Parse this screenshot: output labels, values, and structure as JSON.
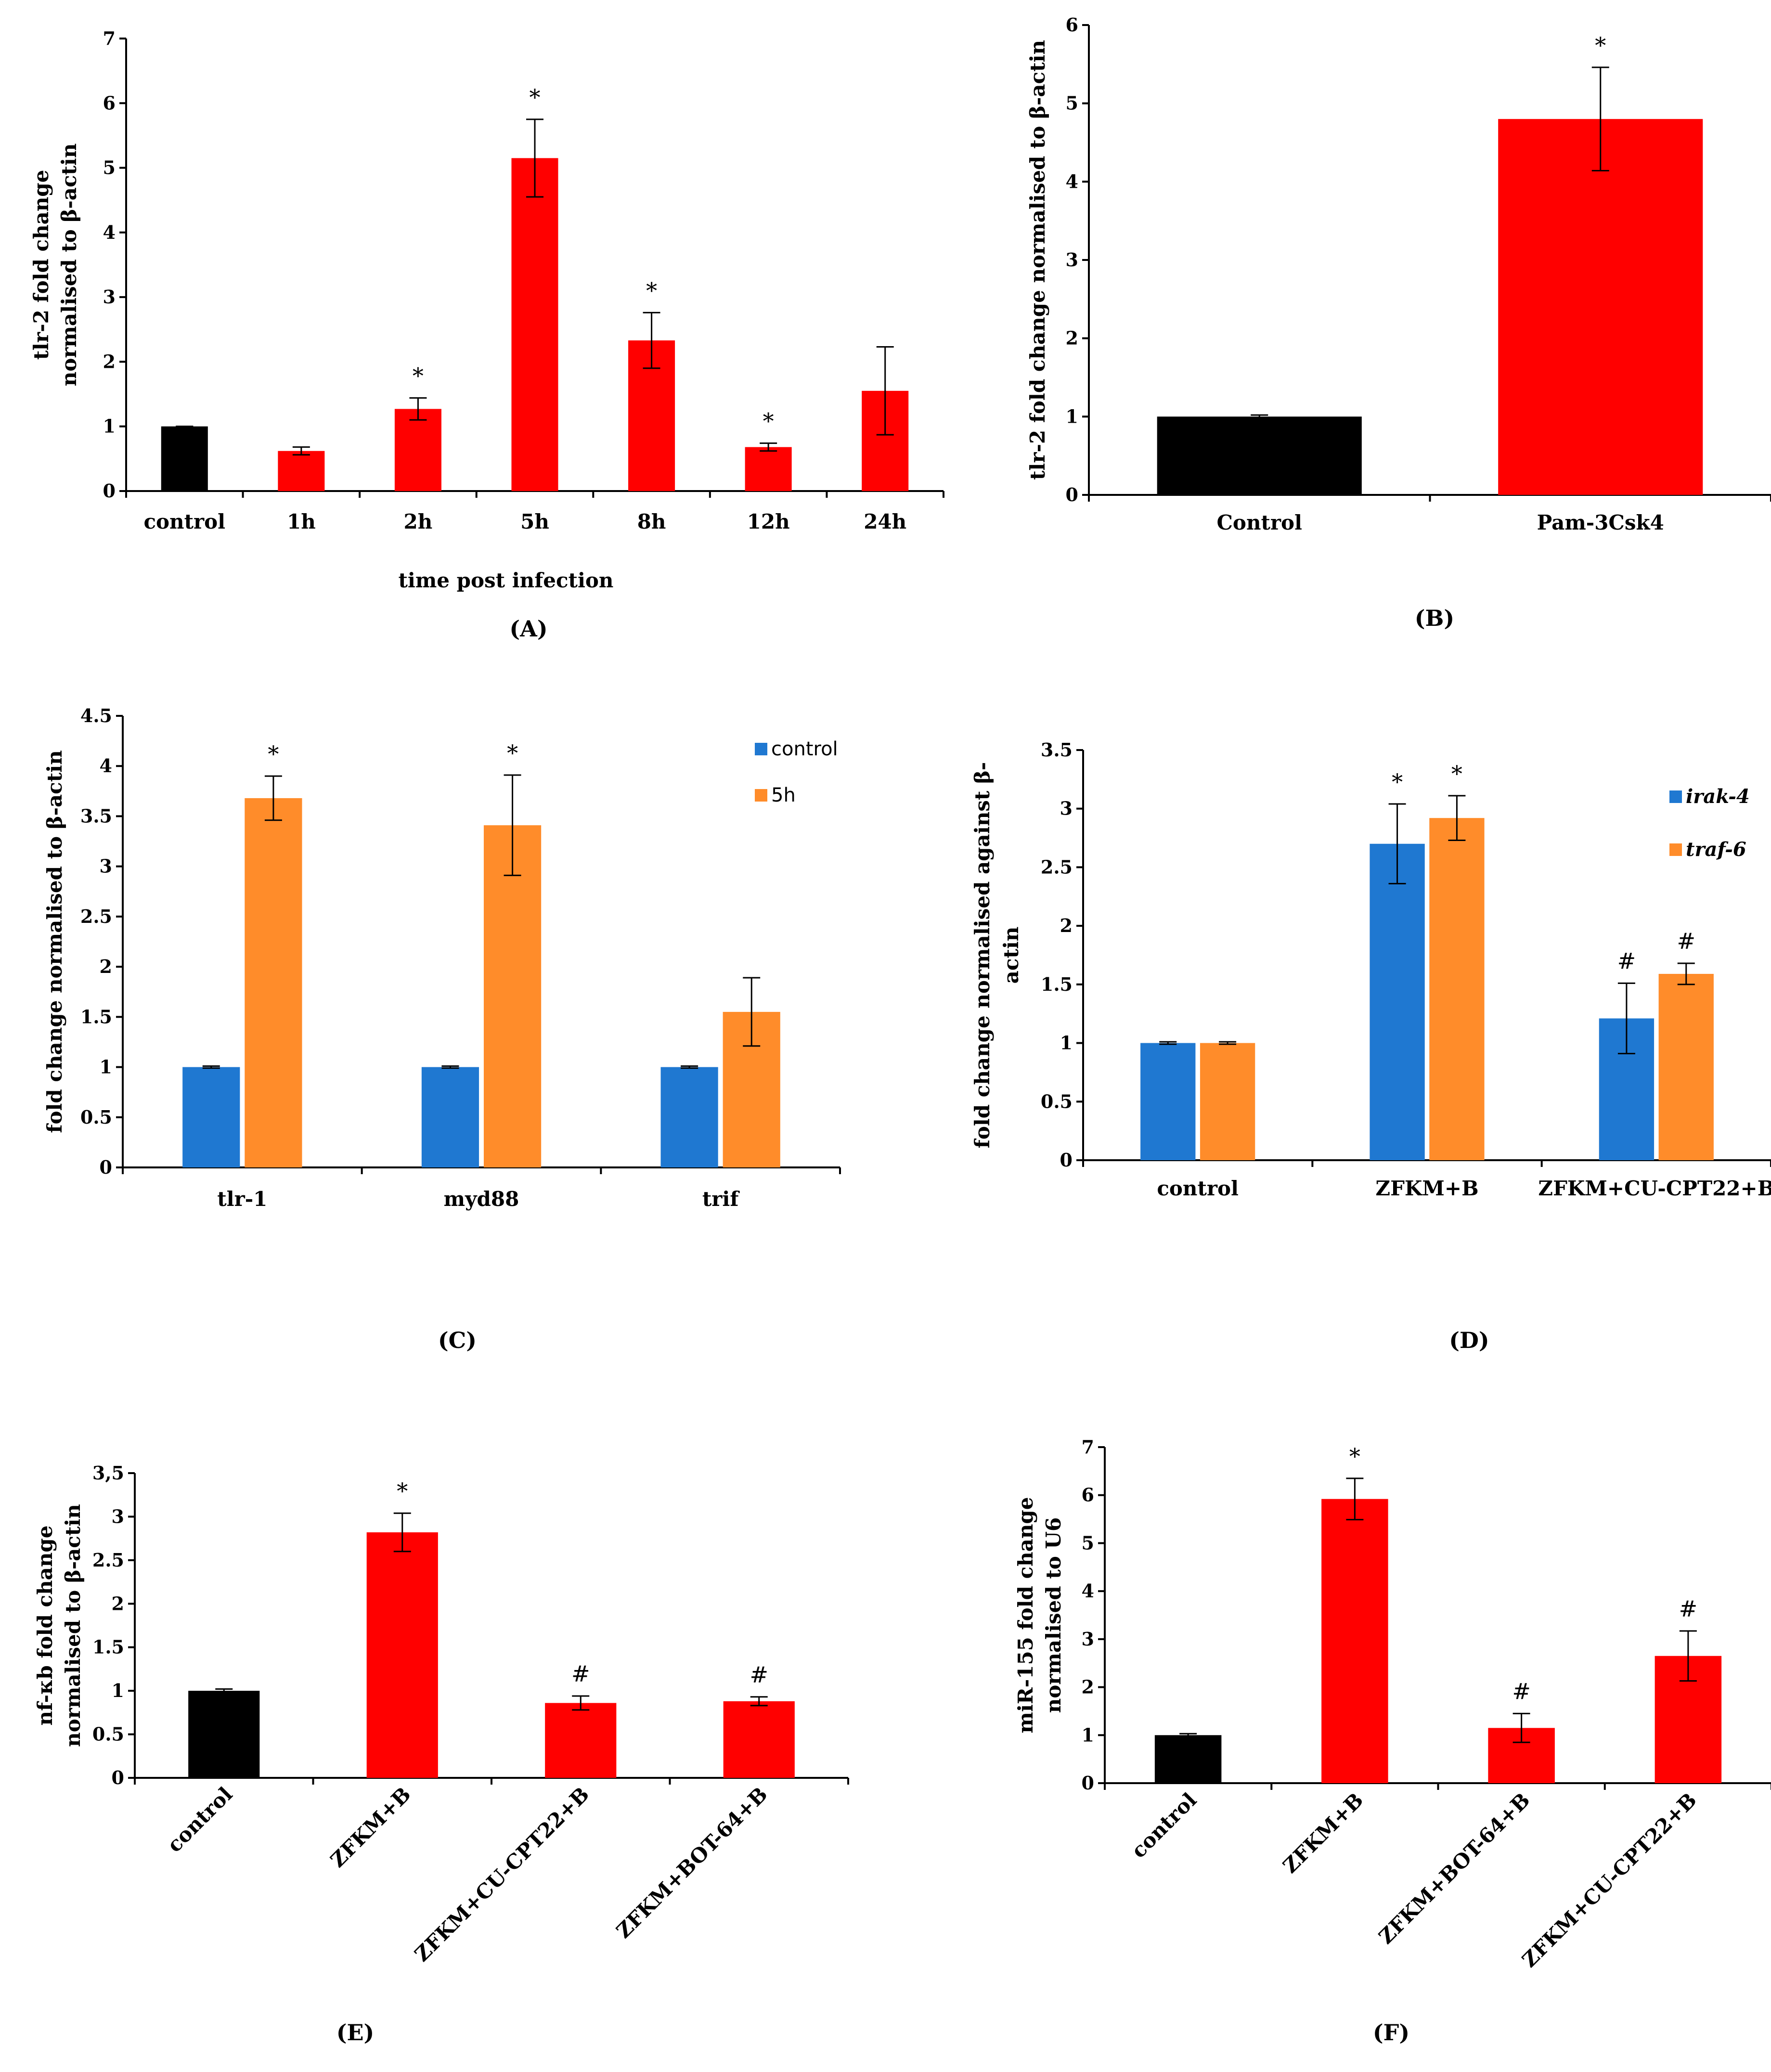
{
  "colors": {
    "black": "#000000",
    "red": "#ff0000",
    "blue": "#1f78d1",
    "orange": "#ff8c2a"
  },
  "chart_data": [
    {
      "id": "A",
      "type": "bar",
      "panel_label": "(A)",
      "ylabel_lines": [
        "tlr-2 fold change",
        "normalised to β-actin"
      ],
      "xlabel": "time post infection",
      "categories": [
        "control",
        "1h",
        "2h",
        "5h",
        "8h",
        "12h",
        "24h"
      ],
      "ylim": [
        0,
        7
      ],
      "yticks": [
        0,
        1,
        2,
        3,
        4,
        5,
        6,
        7
      ],
      "series": [
        {
          "values": [
            1.0,
            0.62,
            1.27,
            5.15,
            2.33,
            0.68,
            1.55
          ],
          "errors": [
            0,
            0.06,
            0.17,
            0.6,
            0.43,
            0.06,
            0.68
          ],
          "colors": [
            "black",
            "red",
            "red",
            "red",
            "red",
            "red",
            "red"
          ]
        }
      ],
      "annotations": [
        {
          "category": 2,
          "series": 0,
          "text": "*"
        },
        {
          "category": 3,
          "series": 0,
          "text": "*"
        },
        {
          "category": 4,
          "series": 0,
          "text": "*"
        },
        {
          "category": 5,
          "series": 0,
          "text": "*"
        }
      ]
    },
    {
      "id": "B",
      "type": "bar",
      "panel_label": "(B)",
      "ylabel_lines": [
        "tlr-2 fold change normalised to β-actin"
      ],
      "xlabel": "",
      "categories": [
        "Control",
        "Pam-3Csk4"
      ],
      "ylim": [
        0,
        6
      ],
      "yticks": [
        0,
        1,
        2,
        3,
        4,
        5,
        6
      ],
      "series": [
        {
          "values": [
            1.0,
            4.8
          ],
          "errors": [
            0.02,
            0.66
          ],
          "colors": [
            "black",
            "red"
          ]
        }
      ],
      "annotations": [
        {
          "category": 1,
          "series": 0,
          "text": "*"
        }
      ]
    },
    {
      "id": "C",
      "type": "bar",
      "panel_label": "(C)",
      "ylabel_lines": [
        "fold change normalised to β-actin"
      ],
      "xlabel": "",
      "categories": [
        "tlr-1",
        "myd88",
        "trif"
      ],
      "ylim": [
        0,
        4.5
      ],
      "yticks": [
        0,
        0.5,
        1,
        1.5,
        2,
        2.5,
        3,
        3.5,
        4,
        4.5
      ],
      "legend": [
        "control",
        "5h"
      ],
      "series": [
        {
          "name": "control",
          "values": [
            1.0,
            1.0,
            1.0
          ],
          "errors": [
            0.01,
            0.01,
            0.01
          ],
          "color": "blue"
        },
        {
          "name": "5h",
          "values": [
            3.68,
            3.41,
            1.55
          ],
          "errors": [
            0.22,
            0.5,
            0.34
          ],
          "color": "orange"
        }
      ],
      "annotations": [
        {
          "category": 0,
          "series": 1,
          "text": "*"
        },
        {
          "category": 1,
          "series": 1,
          "text": "*"
        }
      ]
    },
    {
      "id": "D",
      "type": "bar",
      "panel_label": "(D)",
      "ylabel_lines": [
        "fold change normalised against β-",
        "actin"
      ],
      "xlabel": "",
      "categories": [
        "control",
        "ZFKM+B",
        "ZFKM+CU-CPT22+B"
      ],
      "ylim": [
        0,
        3.5
      ],
      "yticks": [
        0,
        0.5,
        1,
        1.5,
        2,
        2.5,
        3,
        3.5
      ],
      "legend": [
        "irak-4",
        "traf-6"
      ],
      "series": [
        {
          "name": "irak-4",
          "values": [
            1.0,
            2.7,
            1.21
          ],
          "errors": [
            0.01,
            0.34,
            0.3
          ],
          "color": "blue"
        },
        {
          "name": "traf-6",
          "values": [
            1.0,
            2.92,
            1.59
          ],
          "errors": [
            0.01,
            0.19,
            0.09
          ],
          "color": "orange"
        }
      ],
      "annotations": [
        {
          "category": 1,
          "series": 0,
          "text": "*"
        },
        {
          "category": 1,
          "series": 1,
          "text": "*"
        },
        {
          "category": 2,
          "series": 0,
          "text": "#"
        },
        {
          "category": 2,
          "series": 1,
          "text": "#"
        }
      ]
    },
    {
      "id": "E",
      "type": "bar",
      "panel_label": "(E)",
      "ylabel_lines": [
        "nf-κb fold change",
        "normalised to β-actin"
      ],
      "xlabel": "",
      "categories": [
        "control",
        "ZFKM+B",
        "ZFKM+CU-CPT22+B",
        "ZFKM+BOT-64+B"
      ],
      "ylim": [
        0,
        3.5
      ],
      "yticks": [
        0,
        0.5,
        1,
        1.5,
        2,
        2.5,
        3,
        3.5
      ],
      "ytick_labels": [
        "0",
        "0.5",
        "1",
        "1.5",
        "2",
        "2.5",
        "3",
        "3,5"
      ],
      "series": [
        {
          "values": [
            1.0,
            2.82,
            0.86,
            0.88
          ],
          "errors": [
            0.02,
            0.22,
            0.08,
            0.05
          ],
          "colors": [
            "black",
            "red",
            "red",
            "red"
          ]
        }
      ],
      "annotations": [
        {
          "category": 1,
          "series": 0,
          "text": "*"
        },
        {
          "category": 2,
          "series": 0,
          "text": "#"
        },
        {
          "category": 3,
          "series": 0,
          "text": "#"
        }
      ]
    },
    {
      "id": "F",
      "type": "bar",
      "panel_label": "(F)",
      "ylabel_lines": [
        "miR-155 fold change",
        "normalised to U6"
      ],
      "xlabel": "",
      "categories": [
        "control",
        "ZFKM+B",
        "ZFKM+BOT-64+B",
        "ZFKM+CU-CPT22+B"
      ],
      "ylim": [
        0,
        7
      ],
      "yticks": [
        0,
        1,
        2,
        3,
        4,
        5,
        6,
        7
      ],
      "series": [
        {
          "values": [
            1.0,
            5.92,
            1.15,
            2.65
          ],
          "errors": [
            0.03,
            0.43,
            0.3,
            0.52
          ],
          "colors": [
            "black",
            "red",
            "red",
            "red"
          ]
        }
      ],
      "annotations": [
        {
          "category": 1,
          "series": 0,
          "text": "*"
        },
        {
          "category": 2,
          "series": 0,
          "text": "#"
        },
        {
          "category": 3,
          "series": 0,
          "text": "#"
        }
      ]
    }
  ]
}
